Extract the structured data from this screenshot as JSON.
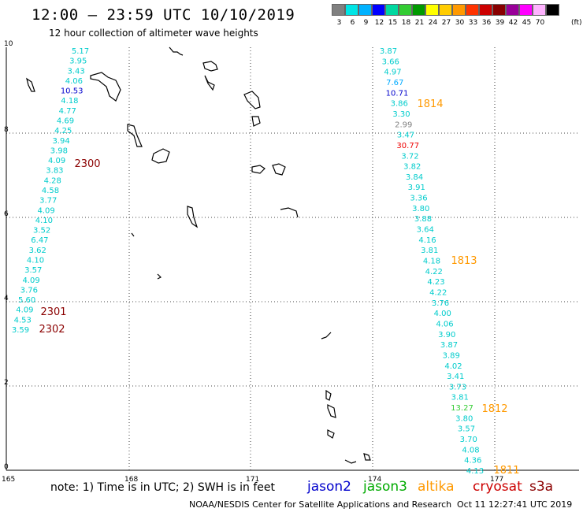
{
  "header": {
    "title": "12:00 – 23:59 UTC 10/10/2019",
    "subtitle": "12 hour collection of altimeter wave heights"
  },
  "colorbar": {
    "unit": "(ft)",
    "entries": [
      {
        "label": "3",
        "color": "#808080"
      },
      {
        "label": "6",
        "color": "#00e5e5"
      },
      {
        "label": "9",
        "color": "#00b2ff"
      },
      {
        "label": "12",
        "color": "#0000ff"
      },
      {
        "label": "15",
        "color": "#00d8a0"
      },
      {
        "label": "18",
        "color": "#33cc33"
      },
      {
        "label": "21",
        "color": "#009900"
      },
      {
        "label": "24",
        "color": "#ffff00"
      },
      {
        "label": "27",
        "color": "#ffcc00"
      },
      {
        "label": "30",
        "color": "#ff9900"
      },
      {
        "label": "33",
        "color": "#ff3300"
      },
      {
        "label": "36",
        "color": "#cc0000"
      },
      {
        "label": "39",
        "color": "#880000"
      },
      {
        "label": "42",
        "color": "#990099"
      },
      {
        "label": "45",
        "color": "#ff00ff"
      },
      {
        "label": "70",
        "color": "#ffb3ff"
      },
      {
        "label": "",
        "color": "#000000"
      }
    ]
  },
  "axes": {
    "lon_ticks": [
      "165",
      "168",
      "171",
      "174",
      "177"
    ],
    "lat_ticks": [
      "0",
      "2",
      "4",
      "6",
      "8",
      "10"
    ]
  },
  "tracks": [
    {
      "time_labels": [
        {
          "text": "2300",
          "color": "#8b0000"
        }
      ],
      "points": [
        {
          "v": "5.17",
          "c": "#00cccc"
        },
        {
          "v": "3.95",
          "c": "#00cccc"
        },
        {
          "v": "3.43",
          "c": "#00cccc"
        },
        {
          "v": "4.06",
          "c": "#00cccc"
        },
        {
          "v": "10.53",
          "c": "#0000cc"
        },
        {
          "v": "4.18",
          "c": "#00cccc"
        },
        {
          "v": "4.77",
          "c": "#00cccc"
        },
        {
          "v": "4.69",
          "c": "#00cccc"
        },
        {
          "v": "4.25",
          "c": "#00cccc"
        },
        {
          "v": "3.94",
          "c": "#00cccc"
        },
        {
          "v": "3.98",
          "c": "#00cccc"
        },
        {
          "v": "4.09",
          "c": "#00cccc"
        },
        {
          "v": "3.83",
          "c": "#00cccc"
        },
        {
          "v": "4.28",
          "c": "#00cccc"
        },
        {
          "v": "4.58",
          "c": "#00cccc"
        },
        {
          "v": "3.77",
          "c": "#00cccc"
        },
        {
          "v": "4.09",
          "c": "#00cccc"
        },
        {
          "v": "4.10",
          "c": "#00cccc"
        },
        {
          "v": "3.52",
          "c": "#00cccc"
        },
        {
          "v": "6.47",
          "c": "#00cccc"
        },
        {
          "v": "3.62",
          "c": "#00cccc"
        },
        {
          "v": "4.10",
          "c": "#00cccc"
        },
        {
          "v": "3.57",
          "c": "#00cccc"
        },
        {
          "v": "4.09",
          "c": "#00cccc"
        },
        {
          "v": "3.76",
          "c": "#00cccc"
        },
        {
          "v": "5.60",
          "c": "#00cccc"
        },
        {
          "v": "4.09",
          "c": "#00cccc"
        },
        {
          "v": "4.53",
          "c": "#00cccc"
        },
        {
          "v": "3.59",
          "c": "#00cccc"
        }
      ]
    },
    {
      "time_labels": [
        {
          "text": "2301",
          "color": "#8b0000"
        },
        {
          "text": "2302",
          "color": "#8b0000"
        }
      ],
      "points": []
    },
    {
      "time_labels": [
        {
          "text": "1814",
          "color": "#ff9900"
        },
        {
          "text": "1813",
          "color": "#ff9900"
        },
        {
          "text": "1812",
          "color": "#ff9900"
        },
        {
          "text": "1811",
          "color": "#ff9900"
        }
      ],
      "points": [
        {
          "v": "3.87",
          "c": "#00cccc"
        },
        {
          "v": "3.66",
          "c": "#00cccc"
        },
        {
          "v": "4.97",
          "c": "#00cccc"
        },
        {
          "v": "7.67",
          "c": "#00aaff"
        },
        {
          "v": "10.71",
          "c": "#0000cc"
        },
        {
          "v": "3.86",
          "c": "#00cccc"
        },
        {
          "v": "3.30",
          "c": "#00cccc"
        },
        {
          "v": "2.99",
          "c": "#808080"
        },
        {
          "v": "3.47",
          "c": "#00cccc"
        },
        {
          "v": "30.77",
          "c": "#ee0000"
        },
        {
          "v": "3.72",
          "c": "#00cccc"
        },
        {
          "v": "3.82",
          "c": "#00cccc"
        },
        {
          "v": "3.84",
          "c": "#00cccc"
        },
        {
          "v": "3.91",
          "c": "#00cccc"
        },
        {
          "v": "3.36",
          "c": "#00cccc"
        },
        {
          "v": "3.80",
          "c": "#00cccc"
        },
        {
          "v": "3.88",
          "c": "#00cccc"
        },
        {
          "v": "3.64",
          "c": "#00cccc"
        },
        {
          "v": "4.16",
          "c": "#00cccc"
        },
        {
          "v": "3.81",
          "c": "#00cccc"
        },
        {
          "v": "4.18",
          "c": "#00cccc"
        },
        {
          "v": "4.22",
          "c": "#00cccc"
        },
        {
          "v": "4.23",
          "c": "#00cccc"
        },
        {
          "v": "4.22",
          "c": "#00cccc"
        },
        {
          "v": "3.76",
          "c": "#00cccc"
        },
        {
          "v": "4.00",
          "c": "#00cccc"
        },
        {
          "v": "4.06",
          "c": "#00cccc"
        },
        {
          "v": "3.90",
          "c": "#00cccc"
        },
        {
          "v": "3.87",
          "c": "#00cccc"
        },
        {
          "v": "3.89",
          "c": "#00cccc"
        },
        {
          "v": "4.02",
          "c": "#00cccc"
        },
        {
          "v": "3.41",
          "c": "#00cccc"
        },
        {
          "v": "3.73",
          "c": "#00cccc"
        },
        {
          "v": "3.81",
          "c": "#00cccc"
        },
        {
          "v": "13.27",
          "c": "#33cc33"
        },
        {
          "v": "3.80",
          "c": "#00cccc"
        },
        {
          "v": "3.57",
          "c": "#00cccc"
        },
        {
          "v": "3.70",
          "c": "#00cccc"
        },
        {
          "v": "4.08",
          "c": "#00cccc"
        },
        {
          "v": "4.36",
          "c": "#00cccc"
        },
        {
          "v": "4.13",
          "c": "#00cccc"
        }
      ]
    }
  ],
  "footer": {
    "note": "note:  1) Time is in UTC;  2) SWH is in feet",
    "legend": [
      {
        "name": "jason2",
        "color": "#0000cc"
      },
      {
        "name": "jason3",
        "color": "#00aa00"
      },
      {
        "name": "altika",
        "color": "#ff9900"
      },
      {
        "name": "cryosat",
        "color": "#cc0000"
      },
      {
        "name": "s3a",
        "color": "#8b0000"
      }
    ],
    "credit": "NOAA/NESDIS Center for Satellite Applications and Research",
    "timestamp": "Oct 11 12:27:41 UTC 2019"
  }
}
